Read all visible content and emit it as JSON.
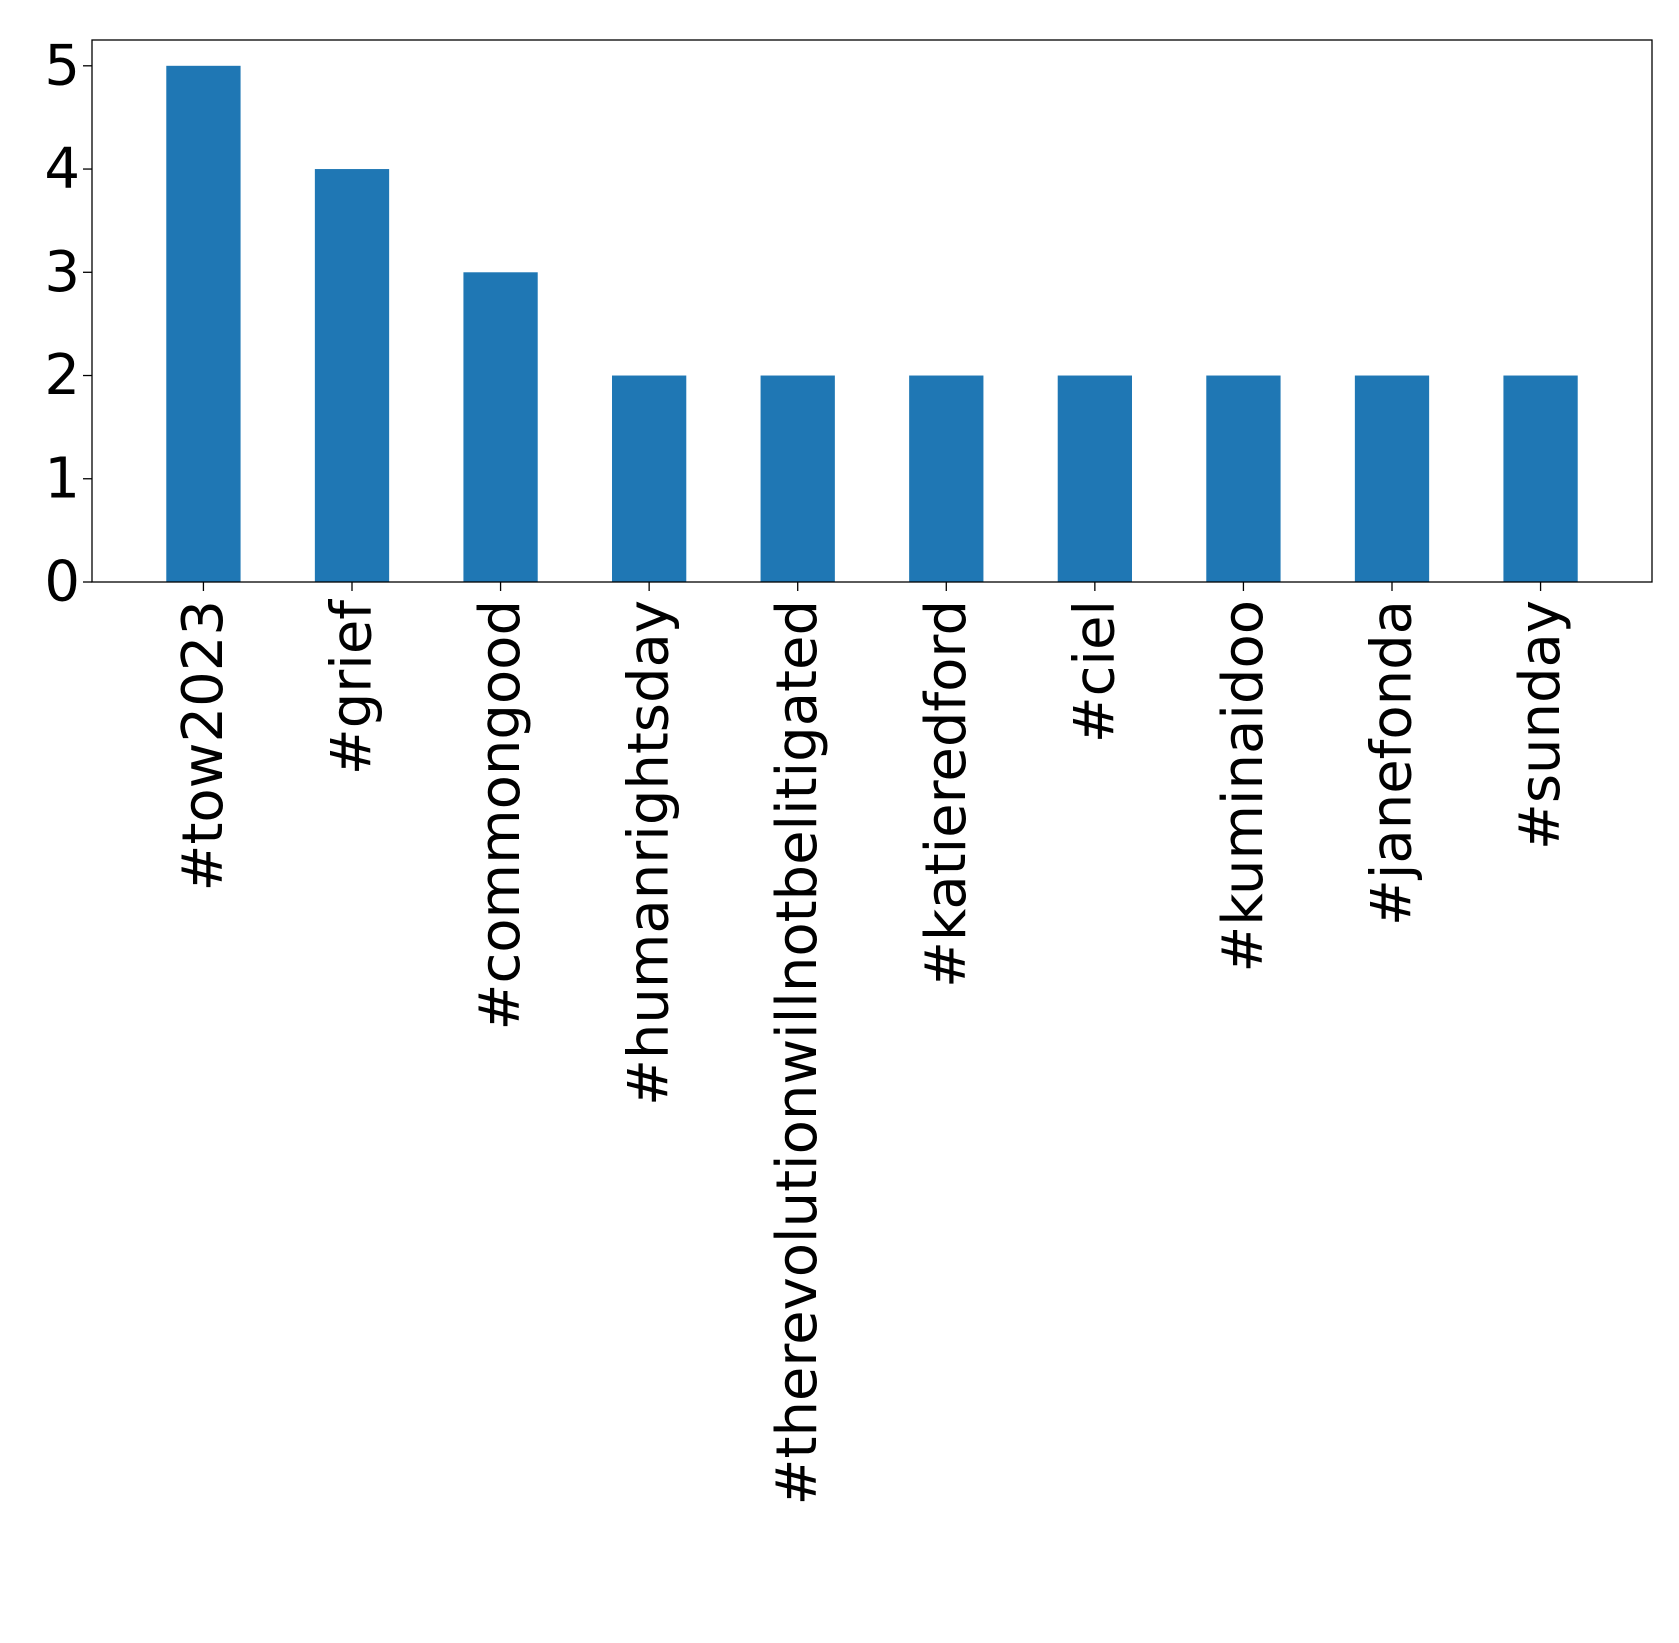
{
  "chart_data": {
    "type": "bar",
    "categories": [
      "#tow2023",
      "#grief",
      "#commongood",
      "#humanrightsday",
      "#therevolutionwillnotbelitigated",
      "#katieredford",
      "#ciel",
      "#kuminaidoo",
      "#janefonda",
      "#sunday"
    ],
    "values": [
      5,
      4,
      3,
      2,
      2,
      2,
      2,
      2,
      2,
      2
    ],
    "ylim": [
      0,
      5.25
    ],
    "yticks": [
      0,
      1,
      2,
      3,
      4,
      5
    ],
    "title": "",
    "xlabel": "",
    "ylabel": "",
    "grid": false,
    "bar_color": "#1f77b4"
  }
}
